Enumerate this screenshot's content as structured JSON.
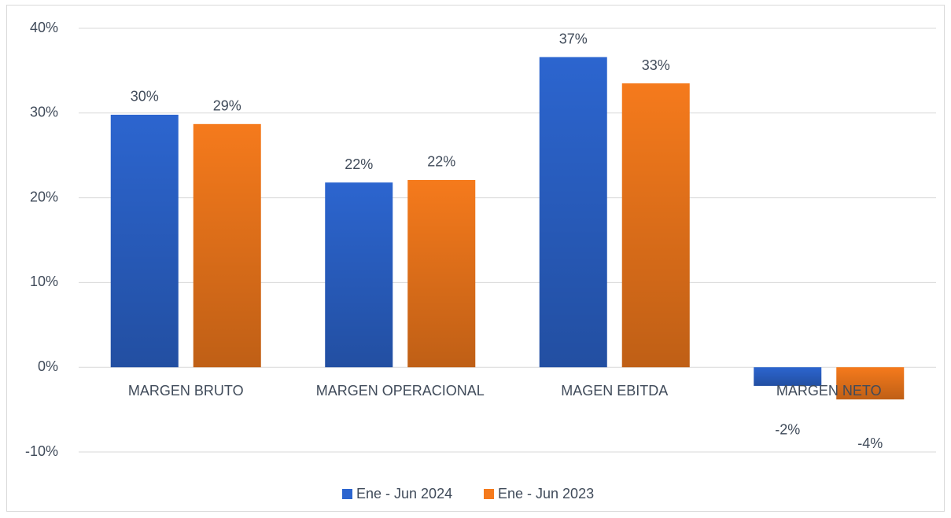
{
  "chart_data": {
    "type": "bar",
    "categories": [
      "MARGEN BRUTO",
      "MARGEN OPERACIONAL",
      "MAGEN EBITDA",
      "MARGEN NETO"
    ],
    "series": [
      {
        "name": "Ene - Jun 2024",
        "color": "#2c65cf",
        "values": [
          29.8,
          21.8,
          36.6,
          -2.2
        ],
        "value_labels": [
          "30%",
          "22%",
          "37%",
          "-2%"
        ]
      },
      {
        "name": "Ene - Jun 2023",
        "color": "#f57a1c",
        "values": [
          28.7,
          22.1,
          33.5,
          -3.8
        ],
        "value_labels": [
          "29%",
          "22%",
          "33%",
          "-4%"
        ]
      }
    ],
    "ylim": [
      -10,
      40
    ],
    "yticks": [
      {
        "value": -10,
        "label": "-10%"
      },
      {
        "value": 0,
        "label": "0%"
      },
      {
        "value": 10,
        "label": "10%"
      },
      {
        "value": 20,
        "label": "20%"
      },
      {
        "value": 30,
        "label": "30%"
      },
      {
        "value": 40,
        "label": "40%"
      }
    ],
    "grid": true,
    "legend": "bottom"
  }
}
